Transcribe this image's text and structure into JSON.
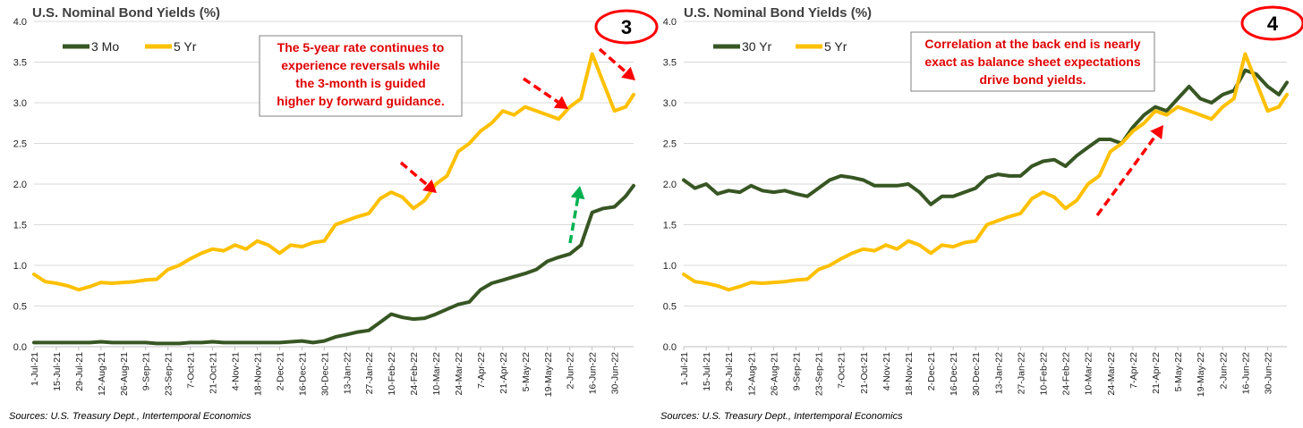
{
  "colors": {
    "short": "#375623",
    "five": "#FFC000",
    "red": "#FF0000",
    "green": "#00B050",
    "grid": "#D9D9D9"
  },
  "x_labels": [
    "1-Jul-21",
    "15-Jul-21",
    "29-Jul-21",
    "12-Aug-21",
    "26-Aug-21",
    "9-Sep-21",
    "23-Sep-21",
    "7-Oct-21",
    "21-Oct-21",
    "4-Nov-21",
    "18-Nov-21",
    "2-Dec-21",
    "16-Dec-21",
    "30-Dec-21",
    "13-Jan-22",
    "27-Jan-22",
    "10-Feb-22",
    "24-Feb-22",
    "10-Mar-22",
    "24-Mar-22",
    "7-Apr-22",
    "21-Apr-22",
    "5-May-22",
    "19-May-22",
    "2-Jun-22",
    "16-Jun-22",
    "30-Jun-22"
  ],
  "charts": [
    {
      "title": "U.S. Nominal Bond Yields (%)",
      "badge": "3",
      "source": "Sources: U.S. Treasury Dept., Intertemporal Economics",
      "annotation": [
        "The 5-year rate continues to",
        "experience reversals while",
        "the 3-month is guided",
        "higher by forward guidance."
      ],
      "legend": [
        "3 Mo",
        "5 Yr"
      ]
    },
    {
      "title": "U.S. Nominal Bond Yields (%)",
      "badge": "4",
      "source": "Sources: U.S. Treasury Dept., Intertemporal Economics",
      "annotation": [
        "Correlation at the back end is nearly",
        "exact as balance sheet expectations",
        "drive bond yields."
      ],
      "legend": [
        "30 Yr",
        "5 Yr"
      ]
    }
  ],
  "chart_data": [
    {
      "type": "line",
      "title": "U.S. Nominal Bond Yields (%)",
      "ylim": [
        0,
        4
      ],
      "yticks": [
        "0.0",
        "0.5",
        "1.0",
        "1.5",
        "2.0",
        "2.5",
        "3.0",
        "3.5",
        "4.0"
      ],
      "x": [
        "1-Jul-21",
        "8-Jul-21",
        "15-Jul-21",
        "22-Jul-21",
        "29-Jul-21",
        "5-Aug-21",
        "12-Aug-21",
        "19-Aug-21",
        "26-Aug-21",
        "2-Sep-21",
        "9-Sep-21",
        "16-Sep-21",
        "23-Sep-21",
        "30-Sep-21",
        "7-Oct-21",
        "14-Oct-21",
        "21-Oct-21",
        "28-Oct-21",
        "4-Nov-21",
        "11-Nov-21",
        "18-Nov-21",
        "25-Nov-21",
        "2-Dec-21",
        "9-Dec-21",
        "16-Dec-21",
        "23-Dec-21",
        "30-Dec-21",
        "6-Jan-22",
        "13-Jan-22",
        "20-Jan-22",
        "27-Jan-22",
        "3-Feb-22",
        "10-Feb-22",
        "17-Feb-22",
        "24-Feb-22",
        "3-Mar-22",
        "10-Mar-22",
        "17-Mar-22",
        "24-Mar-22",
        "31-Mar-22",
        "7-Apr-22",
        "14-Apr-22",
        "21-Apr-22",
        "28-Apr-22",
        "5-May-22",
        "12-May-22",
        "19-May-22",
        "26-May-22",
        "2-Jun-22",
        "9-Jun-22",
        "16-Jun-22",
        "23-Jun-22",
        "30-Jun-22",
        "7-Jul-22",
        "12-Jul-22"
      ],
      "series": [
        {
          "name": "3 Mo",
          "values": [
            0.05,
            0.05,
            0.05,
            0.05,
            0.05,
            0.05,
            0.06,
            0.05,
            0.05,
            0.05,
            0.05,
            0.04,
            0.04,
            0.04,
            0.05,
            0.05,
            0.06,
            0.05,
            0.05,
            0.05,
            0.05,
            0.05,
            0.05,
            0.06,
            0.07,
            0.05,
            0.07,
            0.12,
            0.15,
            0.18,
            0.2,
            0.3,
            0.4,
            0.36,
            0.34,
            0.35,
            0.4,
            0.46,
            0.52,
            0.55,
            0.7,
            0.78,
            0.82,
            0.86,
            0.9,
            0.95,
            1.05,
            1.1,
            1.14,
            1.25,
            1.65,
            1.7,
            1.72,
            1.85,
            1.98
          ]
        },
        {
          "name": "5 Yr",
          "values": [
            0.89,
            0.8,
            0.78,
            0.75,
            0.7,
            0.74,
            0.79,
            0.78,
            0.79,
            0.8,
            0.82,
            0.83,
            0.95,
            1.0,
            1.08,
            1.15,
            1.2,
            1.18,
            1.25,
            1.2,
            1.3,
            1.25,
            1.15,
            1.25,
            1.23,
            1.28,
            1.3,
            1.5,
            1.55,
            1.6,
            1.64,
            1.82,
            1.9,
            1.84,
            1.7,
            1.8,
            2.0,
            2.1,
            2.4,
            2.5,
            2.65,
            2.75,
            2.9,
            2.85,
            2.95,
            2.9,
            2.85,
            2.8,
            2.95,
            3.05,
            3.6,
            3.25,
            2.9,
            2.95,
            3.1
          ]
        }
      ]
    },
    {
      "type": "line",
      "title": "U.S. Nominal Bond Yields (%)",
      "ylim": [
        0,
        4
      ],
      "yticks": [
        "0.0",
        "0.5",
        "1.0",
        "1.5",
        "2.0",
        "2.5",
        "3.0",
        "3.5",
        "4.0"
      ],
      "x": [
        "1-Jul-21",
        "8-Jul-21",
        "15-Jul-21",
        "22-Jul-21",
        "29-Jul-21",
        "5-Aug-21",
        "12-Aug-21",
        "19-Aug-21",
        "26-Aug-21",
        "2-Sep-21",
        "9-Sep-21",
        "16-Sep-21",
        "23-Sep-21",
        "30-Sep-21",
        "7-Oct-21",
        "14-Oct-21",
        "21-Oct-21",
        "28-Oct-21",
        "4-Nov-21",
        "11-Nov-21",
        "18-Nov-21",
        "25-Nov-21",
        "2-Dec-21",
        "9-Dec-21",
        "16-Dec-21",
        "23-Dec-21",
        "30-Dec-21",
        "6-Jan-22",
        "13-Jan-22",
        "20-Jan-22",
        "27-Jan-22",
        "3-Feb-22",
        "10-Feb-22",
        "17-Feb-22",
        "24-Feb-22",
        "3-Mar-22",
        "10-Mar-22",
        "17-Mar-22",
        "24-Mar-22",
        "31-Mar-22",
        "7-Apr-22",
        "14-Apr-22",
        "21-Apr-22",
        "28-Apr-22",
        "5-May-22",
        "12-May-22",
        "19-May-22",
        "26-May-22",
        "2-Jun-22",
        "9-Jun-22",
        "16-Jun-22",
        "23-Jun-22",
        "30-Jun-22",
        "7-Jul-22",
        "12-Jul-22"
      ],
      "series": [
        {
          "name": "30 Yr",
          "values": [
            2.05,
            1.95,
            2.0,
            1.88,
            1.92,
            1.9,
            1.98,
            1.92,
            1.9,
            1.92,
            1.88,
            1.85,
            1.95,
            2.05,
            2.1,
            2.08,
            2.05,
            1.98,
            1.98,
            1.98,
            2.0,
            1.9,
            1.75,
            1.85,
            1.85,
            1.9,
            1.95,
            2.08,
            2.12,
            2.1,
            2.1,
            2.22,
            2.28,
            2.3,
            2.22,
            2.35,
            2.45,
            2.55,
            2.55,
            2.5,
            2.7,
            2.85,
            2.95,
            2.9,
            3.05,
            3.2,
            3.05,
            3.0,
            3.1,
            3.15,
            3.4,
            3.35,
            3.2,
            3.1,
            3.25
          ]
        },
        {
          "name": "5 Yr",
          "values": [
            0.89,
            0.8,
            0.78,
            0.75,
            0.7,
            0.74,
            0.79,
            0.78,
            0.79,
            0.8,
            0.82,
            0.83,
            0.95,
            1.0,
            1.08,
            1.15,
            1.2,
            1.18,
            1.25,
            1.2,
            1.3,
            1.25,
            1.15,
            1.25,
            1.23,
            1.28,
            1.3,
            1.5,
            1.55,
            1.6,
            1.64,
            1.82,
            1.9,
            1.84,
            1.7,
            1.8,
            2.0,
            2.1,
            2.4,
            2.5,
            2.65,
            2.75,
            2.9,
            2.85,
            2.95,
            2.9,
            2.85,
            2.8,
            2.95,
            3.05,
            3.6,
            3.25,
            2.9,
            2.95,
            3.1
          ]
        }
      ]
    }
  ]
}
